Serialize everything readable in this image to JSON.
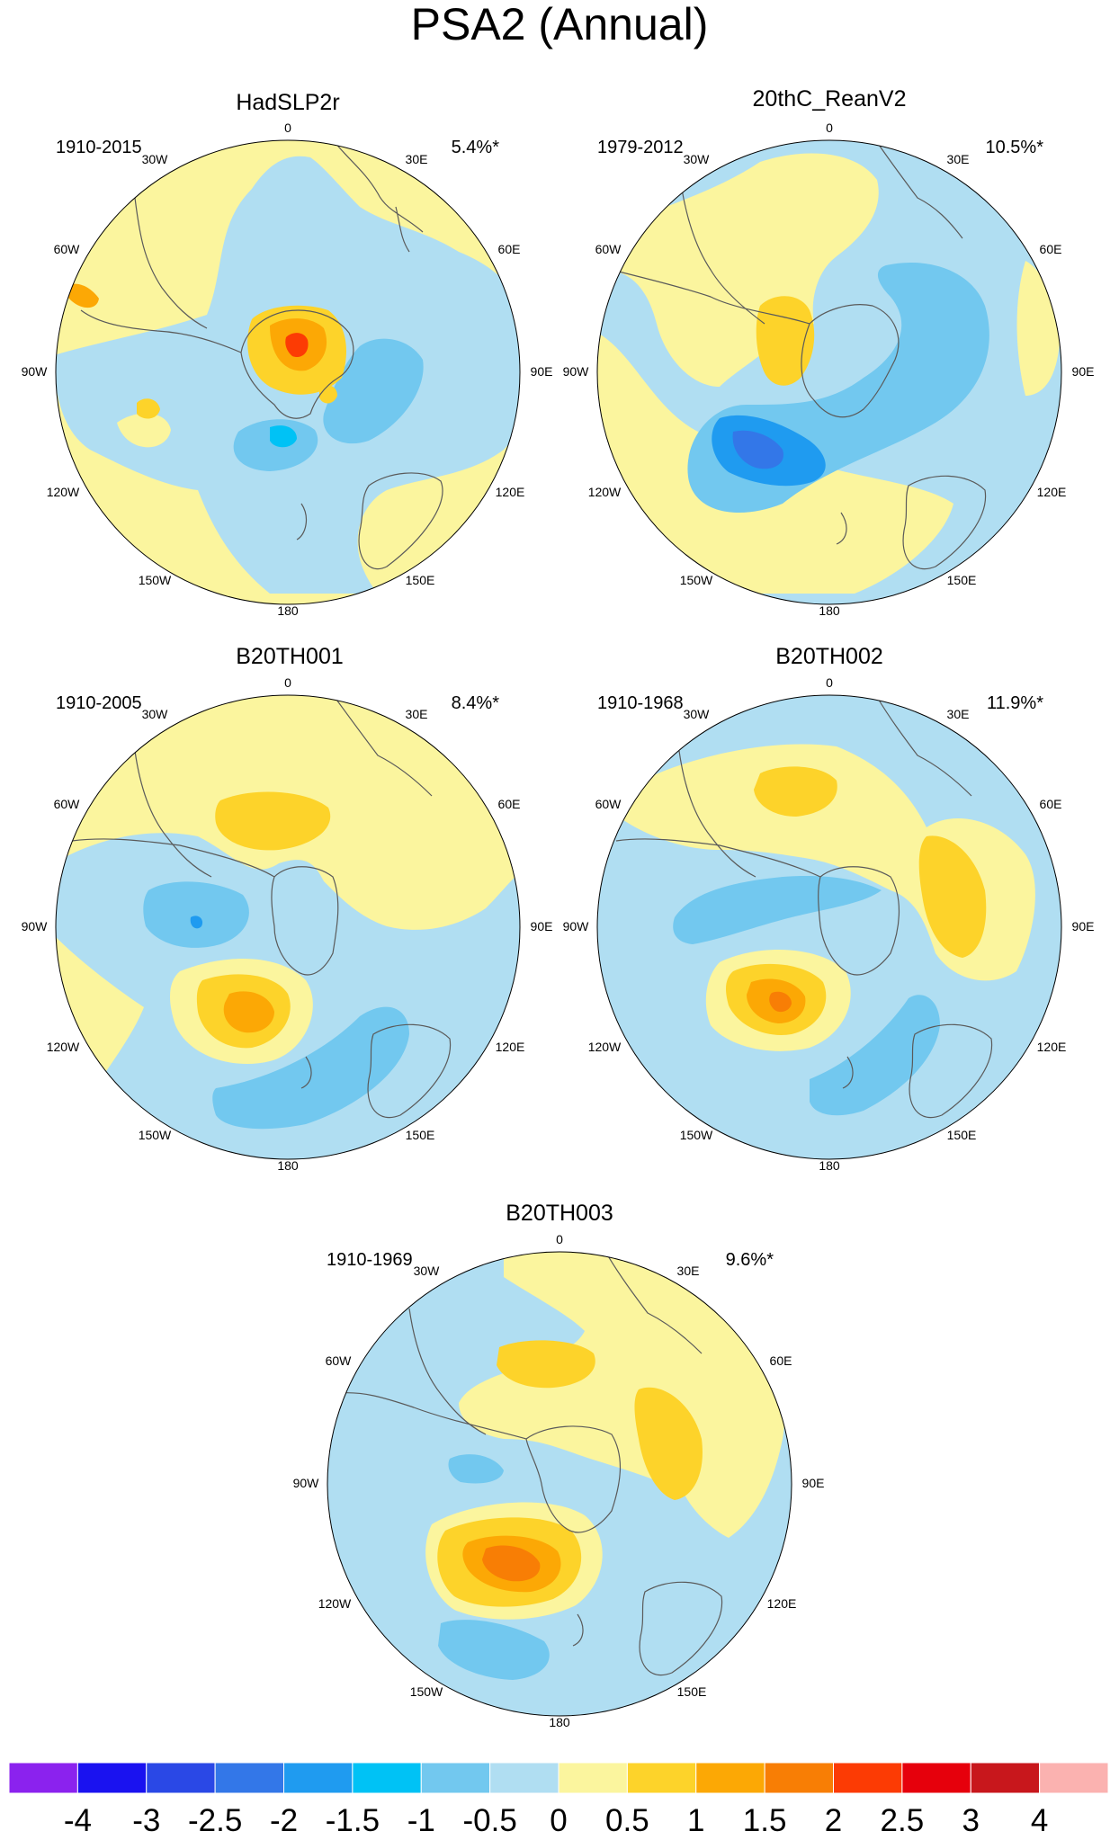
{
  "figure_title": "PSA2 (Annual)",
  "panels": [
    {
      "id": "hadslp2r",
      "title": "HadSLP2r",
      "period": "1910-2015",
      "variance": "5.4%*"
    },
    {
      "id": "20thc-reanv2",
      "title": "20thC_ReanV2",
      "period": "1979-2012",
      "variance": "10.5%*"
    },
    {
      "id": "b20th001",
      "title": "B20TH001",
      "period": "1910-2005",
      "variance": "8.4%*"
    },
    {
      "id": "b20th002",
      "title": "B20TH002",
      "period": "1910-1968",
      "variance": "11.9%*"
    },
    {
      "id": "b20th003",
      "title": "B20TH003",
      "period": "1910-1969",
      "variance": "9.6%*"
    }
  ],
  "longitude_labels": [
    "0",
    "30E",
    "60E",
    "90E",
    "120E",
    "150E",
    "180",
    "150W",
    "120W",
    "90W",
    "60W",
    "30W"
  ],
  "colorbar": {
    "labels": [
      "-4",
      "-3",
      "-2.5",
      "-2",
      "-1.5",
      "-1",
      "-0.5",
      "0",
      "0.5",
      "1",
      "1.5",
      "2",
      "2.5",
      "3",
      "4"
    ],
    "colors": [
      "#8b22ee",
      "#1a12f0",
      "#2a48e6",
      "#3377e8",
      "#1f9bf0",
      "#00c2f5",
      "#72c8ef",
      "#b0def2",
      "#fbf59e",
      "#fdd32a",
      "#fca805",
      "#f87e05",
      "#fc3b04",
      "#e6000c",
      "#c8171c",
      "#fbb2b0"
    ]
  },
  "palette": {
    "neutral_positive": "#fbf59e",
    "neutral_negative": "#b0def2",
    "coast": "#5a5a5a"
  }
}
